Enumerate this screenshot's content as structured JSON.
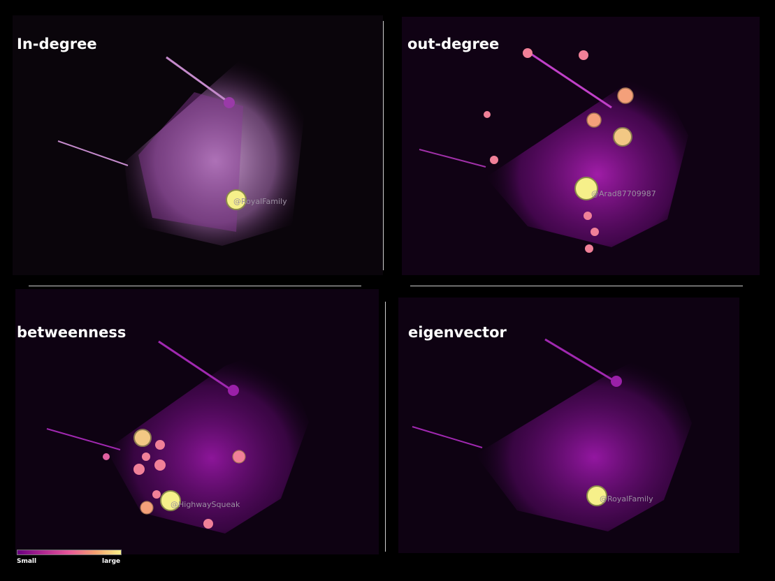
{
  "panels": [
    {
      "id": "in-degree",
      "title": "In-degree",
      "highlight_label": "@RoyalFamily"
    },
    {
      "id": "out-degree",
      "title": "out-degree",
      "highlight_label": "@Arad87709987"
    },
    {
      "id": "betweenness",
      "title": "betweenness",
      "highlight_label": "@HighwaySqueak"
    },
    {
      "id": "eigenvector",
      "title": "eigenvector",
      "highlight_label": "@RoyalFamily"
    }
  ],
  "legend": {
    "min_label": "Small",
    "max_label": "large"
  },
  "colors": {
    "low": "#7a0a8c",
    "mid": "#e8589a",
    "high": "#f8f088",
    "background": "#000000"
  }
}
